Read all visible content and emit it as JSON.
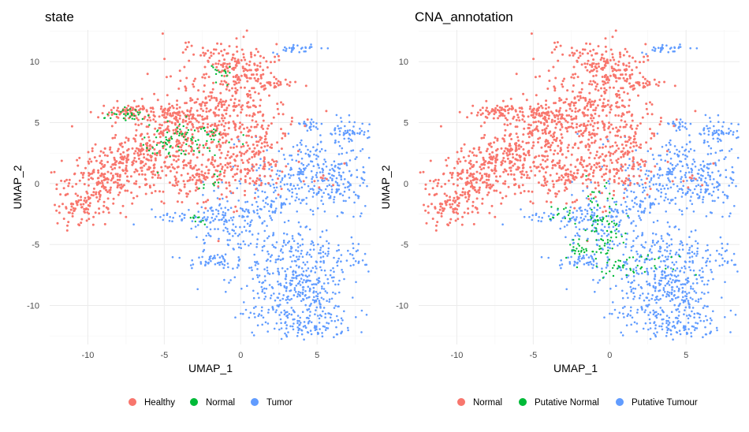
{
  "chart_data": [
    {
      "type": "scatter",
      "title": "state",
      "xlabel": "UMAP_1",
      "ylabel": "UMAP_2",
      "xlim": [
        -12.5,
        8.5
      ],
      "ylim": [
        -13.2,
        12.6
      ],
      "xticks": [
        -10,
        -5,
        0,
        5
      ],
      "yticks": [
        -10,
        -5,
        0,
        5,
        10
      ],
      "grid": true,
      "legend_position": "bottom",
      "series": [
        {
          "name": "Healthy",
          "color": "#F8766D"
        },
        {
          "name": "Normal",
          "color": "#00BA38"
        },
        {
          "name": "Tumor",
          "color": "#619CFF"
        }
      ]
    },
    {
      "type": "scatter",
      "title": "CNA_annotation",
      "xlabel": "UMAP_1",
      "ylabel": "UMAP_2",
      "xlim": [
        -12.5,
        8.5
      ],
      "ylim": [
        -13.2,
        12.6
      ],
      "xticks": [
        -10,
        -5,
        0,
        5
      ],
      "yticks": [
        -10,
        -5,
        0,
        5,
        10
      ],
      "grid": true,
      "legend_position": "bottom",
      "series": [
        {
          "name": "Normal",
          "color": "#F8766D"
        },
        {
          "name": "Putative Normal",
          "color": "#00BA38"
        },
        {
          "name": "Putative Tumour",
          "color": "#619CFF"
        }
      ]
    }
  ]
}
